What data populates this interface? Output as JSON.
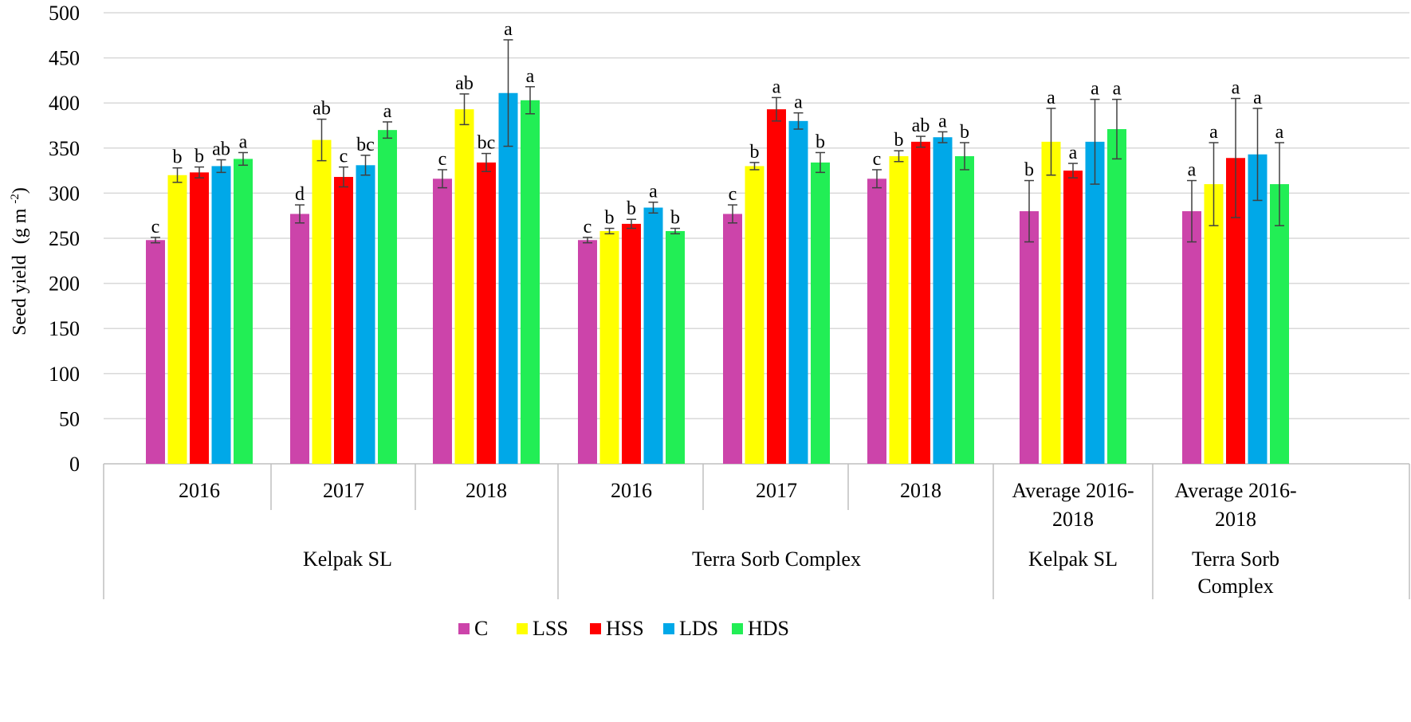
{
  "chart_data": {
    "type": "bar",
    "ylabel": "Seed yield",
    "ylabel_unit_base": "(g m",
    "ylabel_unit_exp": "-2",
    "ylabel_unit_close": ")",
    "ylim": [
      0,
      500
    ],
    "yticks": [
      0,
      50,
      100,
      150,
      200,
      250,
      300,
      350,
      400,
      450,
      500
    ],
    "colors": {
      "C": "#cc44aa",
      "LSS": "#ffff00",
      "HSS": "#ff0000",
      "LDS": "#00a8e8",
      "HDS": "#22ee55"
    },
    "series_names": [
      "C",
      "LSS",
      "HSS",
      "LDS",
      "HDS"
    ],
    "categories": [
      {
        "label_lines": [
          "2016"
        ],
        "group": 0
      },
      {
        "label_lines": [
          "2017"
        ],
        "group": 0
      },
      {
        "label_lines": [
          "2018"
        ],
        "group": 0
      },
      {
        "label_lines": [
          "2016"
        ],
        "group": 1
      },
      {
        "label_lines": [
          "2017"
        ],
        "group": 1
      },
      {
        "label_lines": [
          "2018"
        ],
        "group": 1
      },
      {
        "label_lines": [
          "Average 2016-",
          "2018"
        ],
        "group": 2
      },
      {
        "label_lines": [
          "Average 2016-",
          "2018"
        ],
        "group": 3
      }
    ],
    "groups": [
      {
        "label_lines": [
          "Kelpak SL"
        ]
      },
      {
        "label_lines": [
          "Terra Sorb Complex"
        ]
      },
      {
        "label_lines": [
          "Kelpak SL"
        ]
      },
      {
        "label_lines": [
          "Terra Sorb",
          "Complex"
        ]
      }
    ],
    "values": [
      [
        248,
        320,
        323,
        330,
        338
      ],
      [
        277,
        359,
        318,
        331,
        370
      ],
      [
        316,
        393,
        334,
        411,
        403
      ],
      [
        248,
        258,
        266,
        284,
        258
      ],
      [
        277,
        330,
        393,
        380,
        334
      ],
      [
        316,
        341,
        357,
        362,
        341
      ],
      [
        280,
        357,
        325,
        357,
        371
      ],
      [
        280,
        310,
        339,
        343,
        310
      ]
    ],
    "errors": [
      [
        3,
        8,
        6,
        7,
        7
      ],
      [
        10,
        23,
        11,
        11,
        9
      ],
      [
        10,
        17,
        10,
        59,
        15
      ],
      [
        3,
        3,
        5,
        6,
        3
      ],
      [
        10,
        4,
        13,
        9,
        11
      ],
      [
        10,
        6,
        6,
        6,
        15
      ],
      [
        34,
        37,
        8,
        47,
        33
      ],
      [
        34,
        46,
        66,
        51,
        46
      ]
    ],
    "letters": [
      [
        "c",
        "b",
        "b",
        "ab",
        "a"
      ],
      [
        "d",
        "ab",
        "c",
        "bc",
        "a"
      ],
      [
        "c",
        "ab",
        "bc",
        "a",
        "a"
      ],
      [
        "c",
        "b",
        "b",
        "a",
        "b"
      ],
      [
        "c",
        "b",
        "a",
        "a",
        "b"
      ],
      [
        "c",
        "b",
        "ab",
        "a",
        "b"
      ],
      [
        "b",
        "a",
        "a",
        "a",
        "a"
      ],
      [
        "a",
        "a",
        "a",
        "a",
        "a"
      ]
    ]
  }
}
